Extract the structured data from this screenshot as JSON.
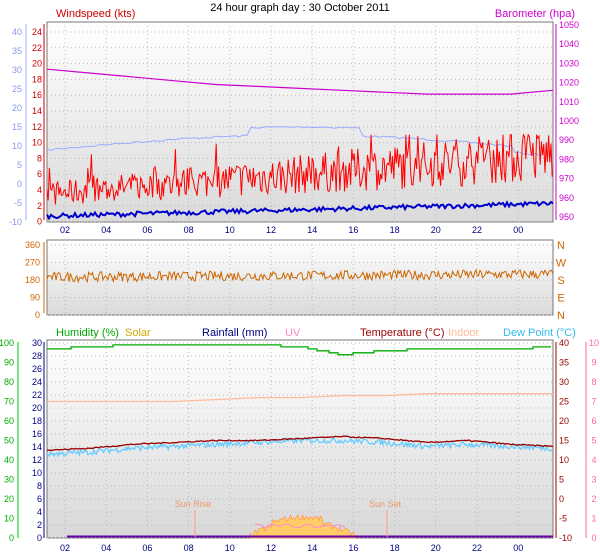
{
  "title": "24 hour graph day : 30 October 2011",
  "wind_panel": {
    "left_title": "Windspeed (kts)",
    "right_title": "Barometer (hpa)",
    "y_left_red": [
      "24",
      "22",
      "20",
      "18",
      "16",
      "14",
      "12",
      "10",
      "8",
      "6",
      "4",
      "2",
      "0"
    ],
    "y_left_blue": [
      "40",
      "35",
      "30",
      "25",
      "20",
      "15",
      "10",
      "5",
      "0",
      "-5",
      "-10"
    ],
    "y_right": [
      "1050",
      "1040",
      "1030",
      "1020",
      "1010",
      "1000",
      "990",
      "980",
      "970",
      "960",
      "950"
    ],
    "x_ticks": [
      "02",
      "04",
      "06",
      "08",
      "10",
      "12",
      "14",
      "16",
      "18",
      "20",
      "22",
      "00"
    ]
  },
  "dir_panel": {
    "y_left": [
      "360",
      "270",
      "180",
      "90",
      "0"
    ],
    "y_right": [
      "N",
      "W",
      "S",
      "E",
      "N"
    ]
  },
  "bottom_panel": {
    "legend": [
      "Humidity (%)",
      "Solar",
      "Rainfall (mm)",
      "UV",
      "Temperature (°C)",
      "Indoor",
      "Dew Point (°C)"
    ],
    "y_left_green": [
      "100",
      "90",
      "80",
      "70",
      "60",
      "50",
      "40",
      "30",
      "20",
      "10",
      "0"
    ],
    "y_left_black": [
      "30",
      "28",
      "26",
      "24",
      "22",
      "20",
      "18",
      "16",
      "14",
      "12",
      "10",
      "8",
      "6",
      "4",
      "2",
      "0"
    ],
    "y_right_red": [
      "40",
      "35",
      "30",
      "25",
      "20",
      "15",
      "10",
      "5",
      "0",
      "-5",
      "-10"
    ],
    "y_right_pink": [
      "10",
      "9",
      "8",
      "7",
      "6",
      "5",
      "4",
      "3",
      "2",
      "1",
      "0"
    ],
    "annotations": [
      "Sun Rise",
      "Sun Set"
    ],
    "x_ticks": [
      "02",
      "04",
      "06",
      "08",
      "10",
      "12",
      "14",
      "16",
      "18",
      "20",
      "22",
      "00"
    ]
  },
  "colors": {
    "wind_red": "#ff0000",
    "wind_blue": "#0000cc",
    "baro": "#cc00cc",
    "light_blue": "#99aaff",
    "direction": "#cc6600",
    "humidity": "#00aa00",
    "solar": "#ffcc66",
    "rainfall": "#000080",
    "uv": "#ff88cc",
    "temperature": "#990000",
    "indoor": "#ffbb99",
    "dew_point": "#66ccff"
  },
  "chart_data": [
    {
      "type": "line",
      "title": "Windspeed (kts)",
      "x": [
        "00",
        "02",
        "04",
        "06",
        "08",
        "10",
        "12",
        "14",
        "16",
        "18",
        "20",
        "22",
        "00"
      ],
      "series": [
        {
          "name": "Windspeed (kts)",
          "axis": "left_red",
          "values": [
            1,
            1,
            2,
            1,
            2,
            2,
            2,
            2,
            3,
            2,
            3,
            3,
            3
          ]
        },
        {
          "name": "Barometer (hpa)",
          "axis": "right",
          "values": [
            1027,
            1025,
            1023,
            1021,
            1019,
            1018,
            1017,
            1016,
            1015,
            1014,
            1014,
            1014,
            1016
          ]
        }
      ],
      "ylim_left": [
        0,
        24
      ],
      "ylim_right": [
        950,
        1050
      ]
    },
    {
      "type": "line",
      "x": [
        "00",
        "02",
        "04",
        "06",
        "08",
        "10",
        "12",
        "14",
        "16",
        "18",
        "20",
        "22",
        "00"
      ],
      "series": [
        {
          "values": [
            200,
            195,
            190,
            188,
            190,
            195,
            195,
            200,
            200,
            205,
            205,
            210,
            215
          ]
        }
      ],
      "ylim": [
        0,
        360
      ]
    },
    {
      "type": "line",
      "x": [
        "00",
        "02",
        "04",
        "06",
        "08",
        "10",
        "12",
        "14",
        "16",
        "18",
        "20",
        "22",
        "00"
      ],
      "series": [
        {
          "name": "Humidity (%)",
          "axis": "left_green",
          "values": [
            97,
            98,
            99,
            99,
            99,
            99,
            98,
            94,
            96,
            97,
            97,
            97,
            98
          ]
        },
        {
          "name": "Temperature (°C)",
          "axis": "right_red",
          "values": [
            12.5,
            13,
            14,
            14.5,
            15,
            15,
            15.5,
            16,
            15.5,
            14.5,
            15,
            14,
            13.5
          ]
        },
        {
          "name": "Dew Point (°C)",
          "axis": "right_red",
          "values": [
            11.5,
            12,
            13,
            13.5,
            14,
            14.5,
            15,
            15,
            14.5,
            13.5,
            14,
            13.5,
            13
          ]
        },
        {
          "name": "Indoor",
          "axis": "right_red",
          "values": [
            25,
            25,
            25,
            25,
            25.5,
            26,
            26,
            26.5,
            26.5,
            27,
            27,
            27,
            27
          ]
        },
        {
          "name": "Solar",
          "axis": "left_black",
          "values": [
            0,
            0,
            0,
            0,
            0,
            0,
            6,
            6,
            0,
            0,
            0,
            0,
            0
          ]
        }
      ],
      "ylim_left": [
        0,
        100
      ],
      "ylim_right": [
        -10,
        40
      ]
    }
  ]
}
